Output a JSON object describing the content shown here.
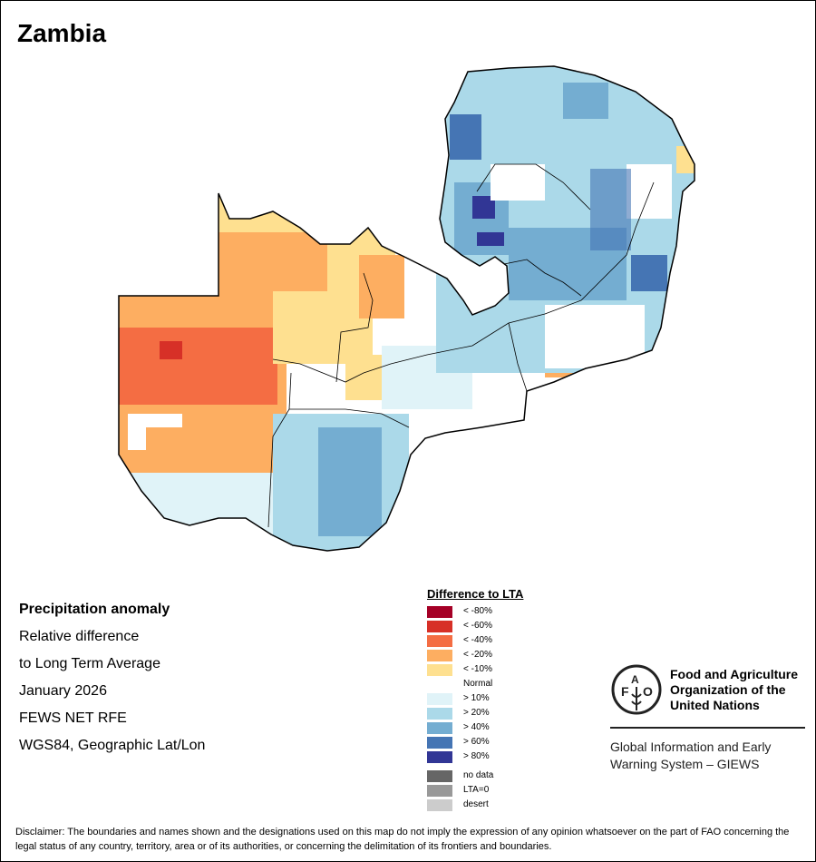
{
  "title": "Zambia",
  "info": {
    "heading": "Precipitation anomaly",
    "lines": [
      "Relative difference",
      "to Long Term Average",
      "January 2026",
      "FEWS NET RFE",
      "WGS84, Geographic Lat/Lon"
    ]
  },
  "legend": {
    "title": "Difference to LTA",
    "items": [
      {
        "label": "< -80%",
        "color": "#a50026"
      },
      {
        "label": "< -60%",
        "color": "#d73027"
      },
      {
        "label": "< -40%",
        "color": "#f46d43"
      },
      {
        "label": "< -20%",
        "color": "#fdae61"
      },
      {
        "label": "< -10%",
        "color": "#fee090"
      },
      {
        "label": "Normal",
        "color": "#ffffff"
      },
      {
        "label": "> 10%",
        "color": "#e0f3f8"
      },
      {
        "label": "> 20%",
        "color": "#abd9e9"
      },
      {
        "label": "> 40%",
        "color": "#74add1"
      },
      {
        "label": "> 60%",
        "color": "#4575b4"
      },
      {
        "label": "> 80%",
        "color": "#313695"
      }
    ],
    "extra": [
      {
        "label": "no data",
        "color": "#666666"
      },
      {
        "label": "LTA=0",
        "color": "#999999"
      },
      {
        "label": "desert",
        "color": "#cccccc"
      }
    ]
  },
  "fao": {
    "logo_text": "FAO FIAT PANIS",
    "name_lines": [
      "Food and Agriculture",
      "Organization of the",
      "United Nations"
    ],
    "giews_lines": [
      "Global Information and Early",
      "Warning System – GIEWS"
    ]
  },
  "disclaimer": "Disclaimer: The boundaries and names shown and the designations used on this map do not imply the expression of any opinion whatsoever on the part of FAO concerning the legal status of any country, territory, area or of its authorities, or concerning the delimitation of its frontiers and boundaries."
}
